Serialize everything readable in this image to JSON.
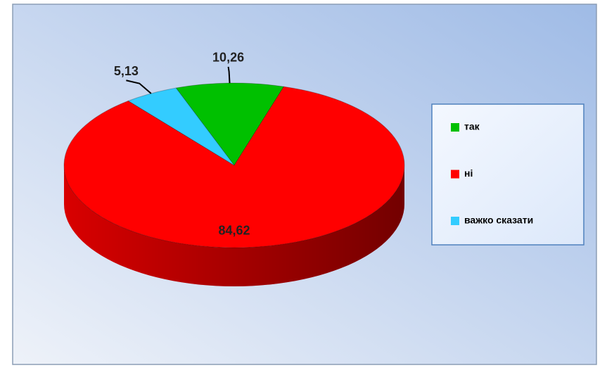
{
  "chart_data": {
    "type": "pie",
    "categories": [
      "так",
      "ні",
      "важко сказати"
    ],
    "values": [
      10.26,
      84.62,
      5.13
    ],
    "value_labels": [
      "10,26",
      "84,62",
      "5,13"
    ],
    "colors": [
      "#00c000",
      "#ff0000",
      "#33ccff"
    ],
    "legend": "right"
  }
}
